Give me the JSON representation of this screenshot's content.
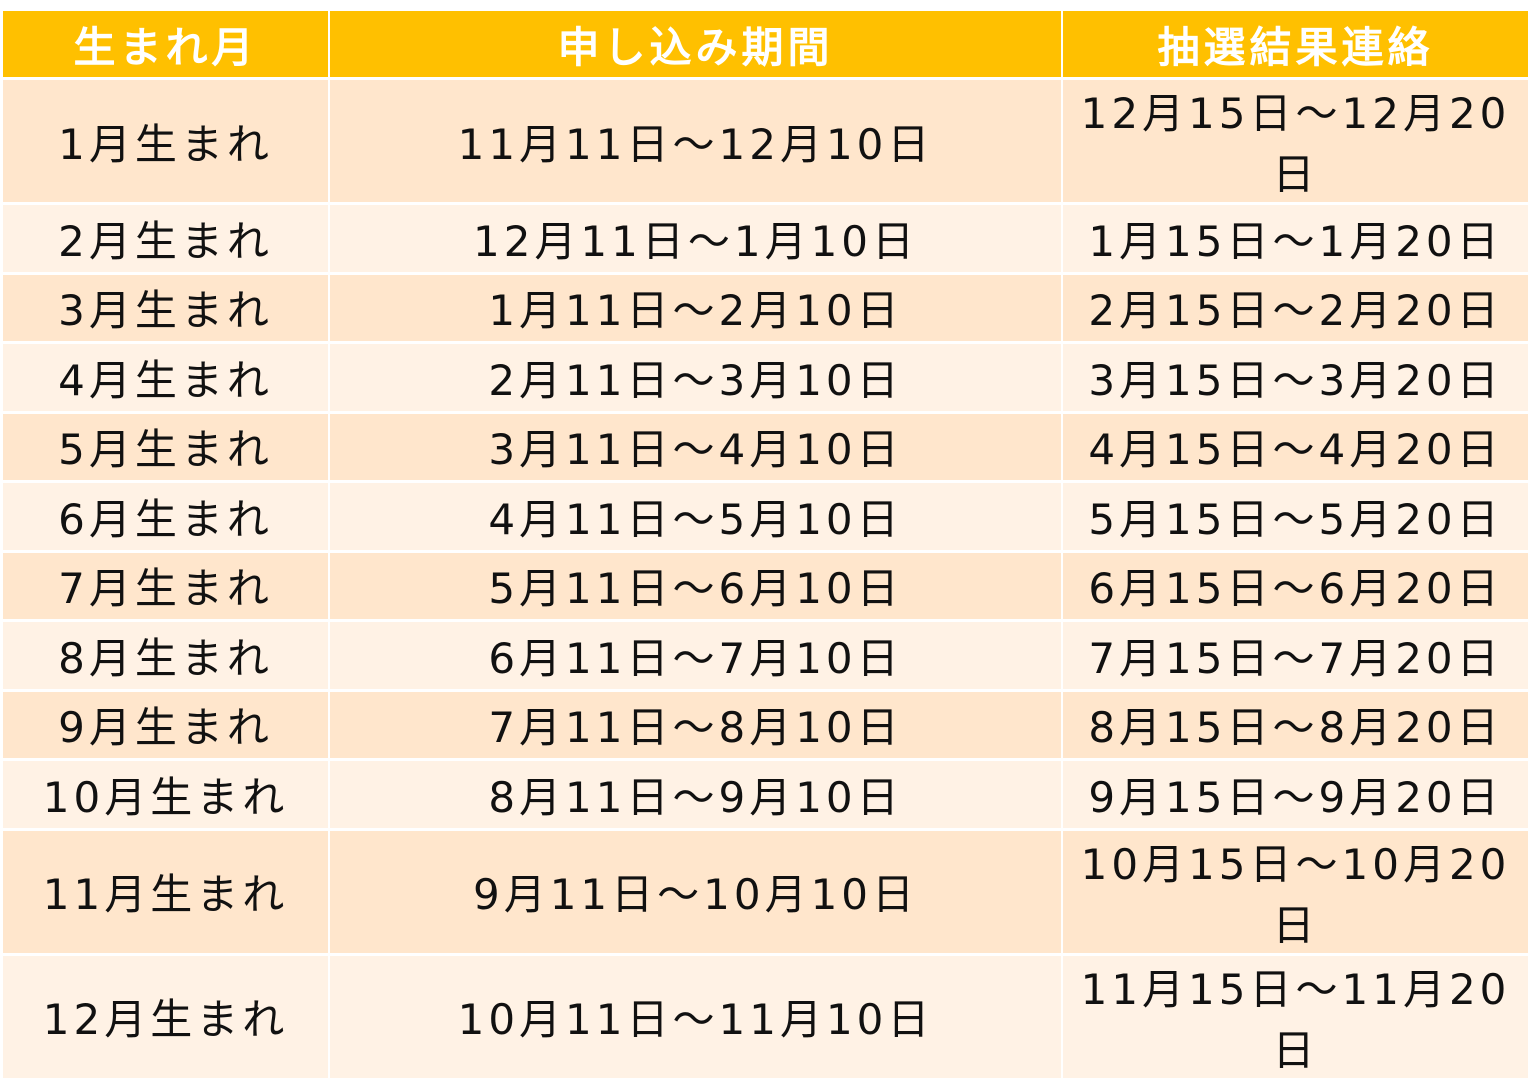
{
  "table": {
    "headers": [
      "生まれ月",
      "申し込み期間",
      "抽選結果連絡"
    ],
    "rows": [
      [
        "1月生まれ",
        "11月11日～12月10日",
        "12月15日～12月20日"
      ],
      [
        "2月生まれ",
        "12月11日～1月10日",
        "1月15日～1月20日"
      ],
      [
        "3月生まれ",
        "1月11日～2月10日",
        "2月15日～2月20日"
      ],
      [
        "4月生まれ",
        "2月11日～3月10日",
        "3月15日～3月20日"
      ],
      [
        "5月生まれ",
        "3月11日～4月10日",
        "4月15日～4月20日"
      ],
      [
        "6月生まれ",
        "4月11日～5月10日",
        "5月15日～5月20日"
      ],
      [
        "7月生まれ",
        "5月11日～6月10日",
        "6月15日～6月20日"
      ],
      [
        "8月生まれ",
        "6月11日～7月10日",
        "7月15日～7月20日"
      ],
      [
        "9月生まれ",
        "7月11日～8月10日",
        "8月15日～8月20日"
      ],
      [
        "10月生まれ",
        "8月11日～9月10日",
        "9月15日～9月20日"
      ],
      [
        "11月生まれ",
        "9月11日～10月10日",
        "10月15日～10月20日"
      ],
      [
        "12月生まれ",
        "10月11日～11月10日",
        "11月15日～11月20日"
      ]
    ]
  },
  "colors": {
    "header": "#FFC000",
    "row_odd": "#FFE6CC",
    "row_even": "#FFF2E5"
  }
}
